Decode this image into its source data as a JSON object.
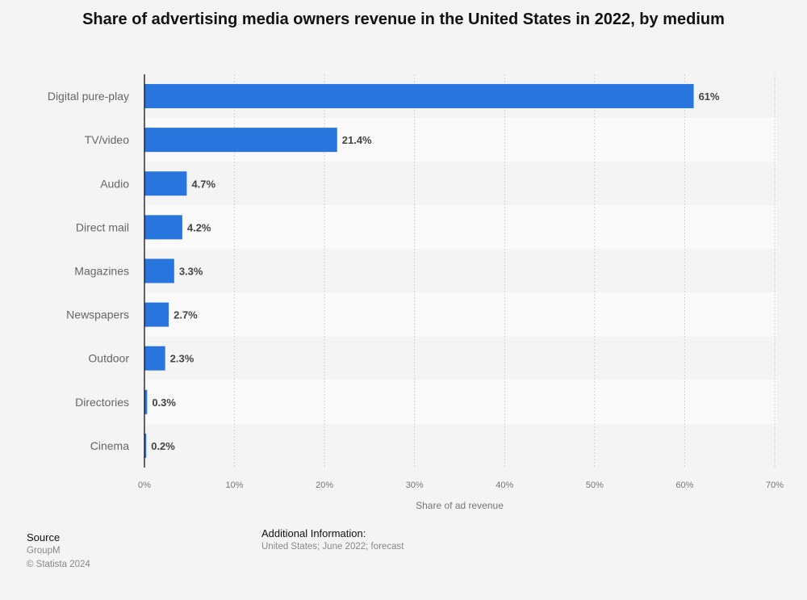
{
  "chart_data": {
    "type": "bar",
    "orientation": "horizontal",
    "title": "Share of advertising media owners revenue in the United States in 2022, by medium",
    "categories": [
      "Digital pure-play",
      "TV/video",
      "Audio",
      "Direct mail",
      "Magazines",
      "Newspapers",
      "Outdoor",
      "Directories",
      "Cinema"
    ],
    "values": [
      61,
      21.4,
      4.7,
      4.2,
      3.3,
      2.7,
      2.3,
      0.3,
      0.2
    ],
    "data_labels": [
      "61%",
      "21.4%",
      "4.7%",
      "4.2%",
      "3.3%",
      "2.7%",
      "2.3%",
      "0.3%",
      "0.2%"
    ],
    "xlabel": "Share of ad revenue",
    "ylabel": "",
    "xlim": [
      0,
      70
    ],
    "xticks": [
      0,
      10,
      20,
      30,
      40,
      50,
      60,
      70
    ],
    "xtick_labels": [
      "0%",
      "10%",
      "20%",
      "30%",
      "40%",
      "50%",
      "60%",
      "70%"
    ],
    "grid": true,
    "bar_color": "#2876dd"
  },
  "footer": {
    "source_heading": "Source",
    "source": "GroupM",
    "copyright": "© Statista 2024",
    "info_heading": "Additional Information:",
    "info": "United States; June 2022; forecast"
  }
}
